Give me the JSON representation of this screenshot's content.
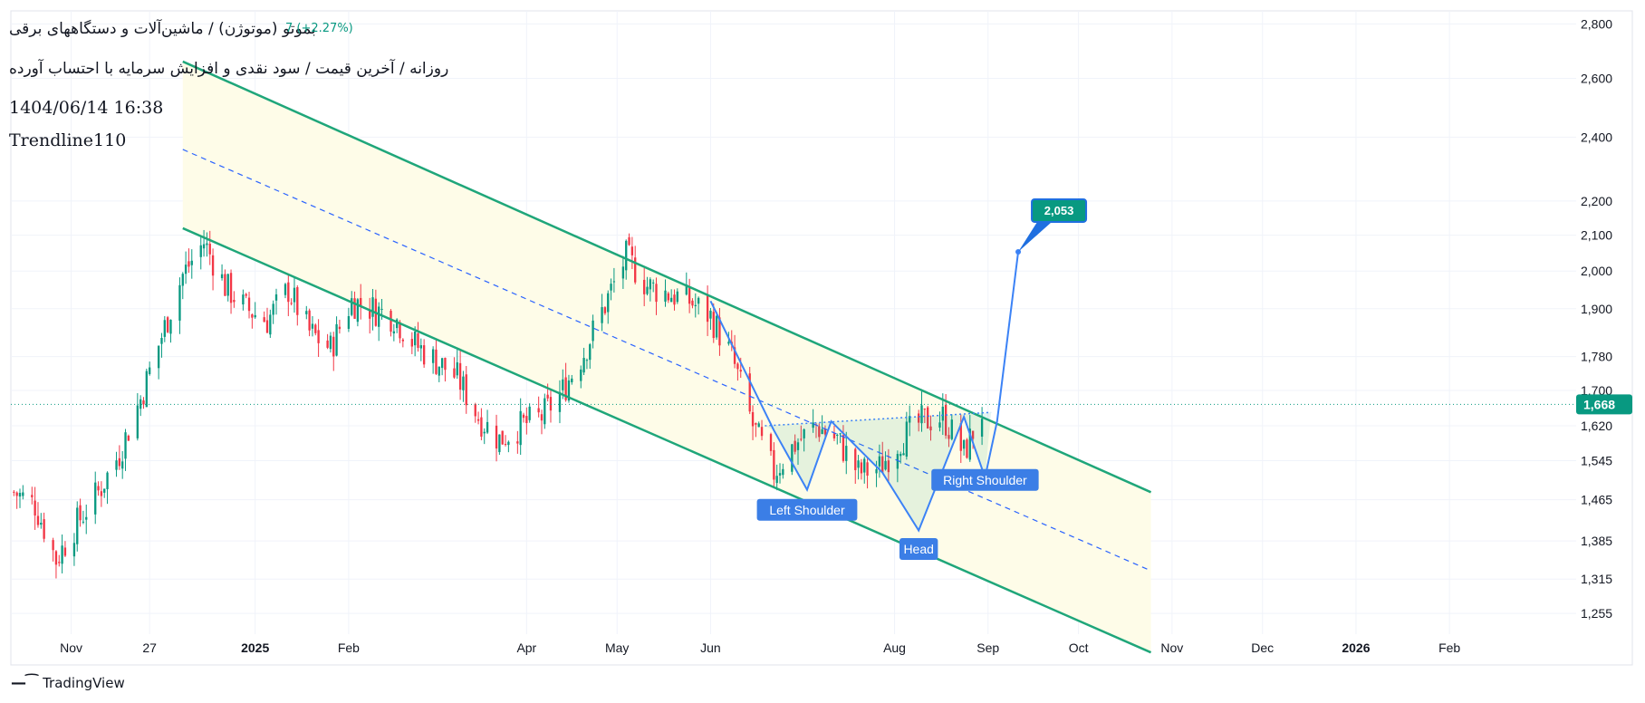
{
  "header": {
    "title": "بموتو (موتوژن) / ماشین‌آلات و دستگاههای برقی",
    "subtitle": "روزانه / آخرین قیمت / سود نقدی و افزایش سرمایه با احتساب آورده",
    "datetime": "1404/06/14 16:38",
    "author": "Trendline110",
    "change_text": "7 (+2.27%)"
  },
  "footer": {
    "brand": "TradingView"
  },
  "colors": {
    "up": "#089981",
    "down": "#f23645",
    "channel": "#1fa67a",
    "channel_fill": "#fefce8",
    "midline": "#2962ff",
    "pattern": "#3b82f6",
    "last_price": "#089981"
  },
  "chart_data": {
    "type": "candlestick",
    "scale": "log",
    "ylim": [
      1220,
      2850
    ],
    "y_ticks": [
      2800,
      2600,
      2400,
      2200,
      2100,
      2000,
      1900,
      1780,
      1700,
      1620,
      1545,
      1465,
      1385,
      1315,
      1255
    ],
    "x_ticks": [
      {
        "label": "Nov",
        "date": "2024-11-01"
      },
      {
        "label": "27",
        "date": "2024-11-27"
      },
      {
        "label": "2025",
        "date": "2025-01-01",
        "bold": true
      },
      {
        "label": "Feb",
        "date": "2025-02-01"
      },
      {
        "label": "Apr",
        "date": "2025-04-01"
      },
      {
        "label": "May",
        "date": "2025-05-01"
      },
      {
        "label": "Jun",
        "date": "2025-06-01"
      },
      {
        "label": "Aug",
        "date": "2025-08-01"
      },
      {
        "label": "Sep",
        "date": "2025-09-01"
      },
      {
        "label": "Oct",
        "date": "2025-10-01"
      },
      {
        "label": "Nov",
        "date": "2025-11-01"
      },
      {
        "label": "Dec",
        "date": "2025-12-01"
      },
      {
        "label": "2026",
        "date": "2026-01-01",
        "bold": true
      },
      {
        "label": "Feb",
        "date": "2026-02-01"
      }
    ],
    "last_price": 1668,
    "target_label": "2,053",
    "last_price_label": "1,668",
    "close_path": [
      [
        "2024-10-13",
        1480
      ],
      [
        "2024-10-20",
        1455
      ],
      [
        "2024-10-27",
        1350
      ],
      [
        "2024-11-03",
        1420
      ],
      [
        "2024-11-10",
        1480
      ],
      [
        "2024-11-17",
        1560
      ],
      [
        "2024-11-24",
        1680
      ],
      [
        "2024-12-01",
        1830
      ],
      [
        "2024-12-08",
        1990
      ],
      [
        "2024-12-15",
        2080
      ],
      [
        "2024-12-22",
        1960
      ],
      [
        "2024-12-29",
        1900
      ],
      [
        "2025-01-05",
        1870
      ],
      [
        "2025-01-12",
        1950
      ],
      [
        "2025-01-19",
        1840
      ],
      [
        "2025-01-26",
        1800
      ],
      [
        "2025-02-02",
        1920
      ],
      [
        "2025-02-09",
        1900
      ],
      [
        "2025-02-16",
        1880
      ],
      [
        "2025-02-23",
        1810
      ],
      [
        "2025-03-02",
        1770
      ],
      [
        "2025-03-09",
        1730
      ],
      [
        "2025-03-16",
        1640
      ],
      [
        "2025-03-23",
        1590
      ],
      [
        "2025-03-30",
        1620
      ],
      [
        "2025-04-06",
        1640
      ],
      [
        "2025-04-13",
        1700
      ],
      [
        "2025-04-20",
        1790
      ],
      [
        "2025-04-27",
        1910
      ],
      [
        "2025-05-04",
        2040
      ],
      [
        "2025-05-11",
        1960
      ],
      [
        "2025-05-18",
        1940
      ],
      [
        "2025-05-25",
        1920
      ],
      [
        "2025-06-01",
        1880
      ],
      [
        "2025-06-08",
        1780
      ],
      [
        "2025-06-15",
        1620
      ],
      [
        "2025-06-22",
        1520
      ],
      [
        "2025-06-29",
        1580
      ],
      [
        "2025-07-06",
        1620
      ],
      [
        "2025-07-13",
        1590
      ],
      [
        "2025-07-20",
        1520
      ],
      [
        "2025-07-27",
        1530
      ],
      [
        "2025-08-03",
        1590
      ],
      [
        "2025-08-10",
        1630
      ],
      [
        "2025-08-17",
        1640
      ],
      [
        "2025-08-24",
        1560
      ],
      [
        "2025-08-31",
        1668
      ]
    ],
    "channel": {
      "upper": [
        [
          "2024-12-08",
          2660
        ],
        [
          "2025-10-25",
          1480
        ]
      ],
      "lower": [
        [
          "2024-12-08",
          2120
        ],
        [
          "2025-10-25",
          1190
        ]
      ],
      "middle": [
        [
          "2024-12-08",
          2360
        ],
        [
          "2025-10-25",
          1330
        ]
      ]
    },
    "pattern_path": [
      [
        "2025-06-01",
        1920
      ],
      [
        "2025-06-22",
        1610
      ],
      [
        "2025-07-03",
        1485
      ],
      [
        "2025-07-11",
        1630
      ],
      [
        "2025-07-28",
        1520
      ],
      [
        "2025-08-09",
        1405
      ],
      [
        "2025-08-24",
        1640
      ],
      [
        "2025-08-31",
        1510
      ],
      [
        "2025-09-04",
        1630
      ],
      [
        "2025-09-11",
        2053
      ]
    ],
    "neckline": [
      [
        "2025-06-19",
        1620
      ],
      [
        "2025-09-02",
        1650
      ]
    ],
    "annotations": [
      {
        "text": "Left Shoulder",
        "date": "2025-07-03",
        "price": 1445
      },
      {
        "text": "Head",
        "date": "2025-08-09",
        "price": 1370
      },
      {
        "text": "Right Shoulder",
        "date": "2025-08-31",
        "price": 1505
      }
    ]
  }
}
